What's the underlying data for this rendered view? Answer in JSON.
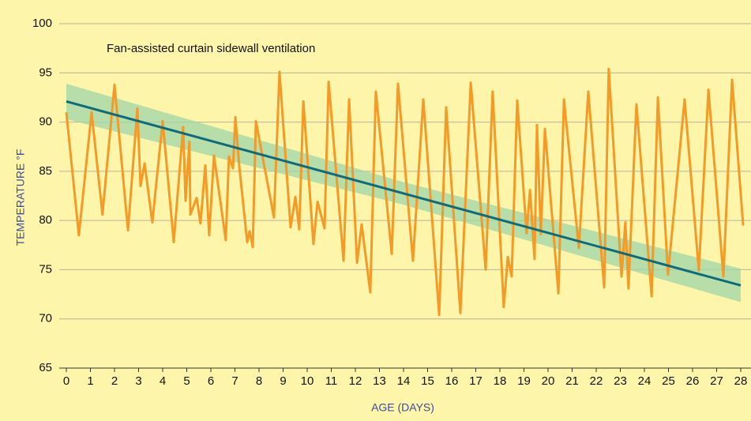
{
  "chart_data": {
    "type": "line",
    "title": "Fan-assisted curtain sidewall ventilation",
    "xlabel": "AGE (DAYS)",
    "ylabel": "TEMPERATURE °F",
    "xlim": [
      0,
      28
    ],
    "ylim": [
      65,
      100
    ],
    "xticks": [
      0,
      1,
      2,
      3,
      4,
      5,
      6,
      7,
      8,
      9,
      10,
      11,
      12,
      13,
      14,
      15,
      16,
      17,
      18,
      19,
      20,
      21,
      22,
      23,
      24,
      25,
      26,
      27,
      28
    ],
    "yticks": [
      65,
      70,
      75,
      80,
      85,
      90,
      95,
      100
    ],
    "grid": true,
    "series": [
      {
        "color": "#f39a27",
        "x": [
          0,
          0.52,
          1.05,
          1.5,
          2.0,
          2.56,
          2.95,
          3.08,
          3.25,
          3.57,
          4.0,
          4.46,
          4.85,
          4.95,
          5.11,
          5.15,
          5.41,
          5.57,
          5.77,
          5.93,
          6.13,
          6.62,
          6.75,
          6.92,
          7.02,
          7.18,
          7.51,
          7.61,
          7.74,
          7.87,
          8.62,
          8.85,
          9.31,
          9.51,
          9.67,
          9.84,
          10.26,
          10.43,
          10.72,
          10.89,
          11.51,
          11.74,
          12.07,
          12.26,
          12.62,
          12.85,
          13.51,
          13.77,
          14.39,
          14.82,
          15.48,
          15.77,
          16.36,
          16.79,
          17.41,
          17.7,
          18.16,
          18.33,
          18.49,
          18.72,
          19.11,
          19.25,
          19.44,
          19.54,
          19.7,
          19.87,
          20.43,
          20.66,
          21.28,
          21.67,
          22.33,
          22.52,
          23.05,
          23.21,
          23.34,
          23.67,
          24.3,
          24.56,
          24.98,
          25.67,
          26.26,
          26.66,
          27.28,
          27.64,
          28.1
        ],
        "values": [
          91,
          78.5,
          91,
          80.6,
          93.8,
          79,
          91.4,
          83.5,
          85.8,
          79.8,
          90.1,
          77.8,
          89.5,
          82,
          88,
          80.6,
          82.3,
          79.7,
          85.6,
          78.5,
          86.6,
          78,
          86.5,
          85.3,
          90.5,
          85.5,
          77.8,
          78.9,
          77.3,
          90.1,
          80.3,
          95.1,
          79.3,
          82.4,
          79.1,
          92.1,
          77.6,
          81.9,
          79.2,
          94.1,
          75.9,
          92.3,
          75.7,
          79.6,
          72.7,
          93.1,
          76.6,
          93.9,
          75.9,
          92.3,
          70.4,
          91.5,
          70.6,
          94,
          75,
          93.1,
          71.2,
          76.3,
          74.3,
          92.2,
          78.7,
          83.1,
          76.1,
          89.7,
          78.6,
          89.3,
          72.6,
          92.3,
          77.2,
          93.1,
          73.2,
          95.4,
          74.3,
          79.8,
          73.1,
          91.8,
          72.3,
          92.5,
          74.5,
          92.3,
          74.9,
          93.3,
          74.3,
          94.3,
          79.5
        ]
      }
    ],
    "trend": {
      "color": "#0f6b7c",
      "x": [
        0,
        28
      ],
      "values": [
        92.1,
        73.4
      ]
    },
    "band": {
      "color": "#9fd5a9",
      "x": [
        0,
        14,
        28
      ],
      "upper": [
        93.9,
        83.9,
        75.1
      ],
      "lower": [
        90.3,
        81.6,
        71.7
      ]
    }
  }
}
